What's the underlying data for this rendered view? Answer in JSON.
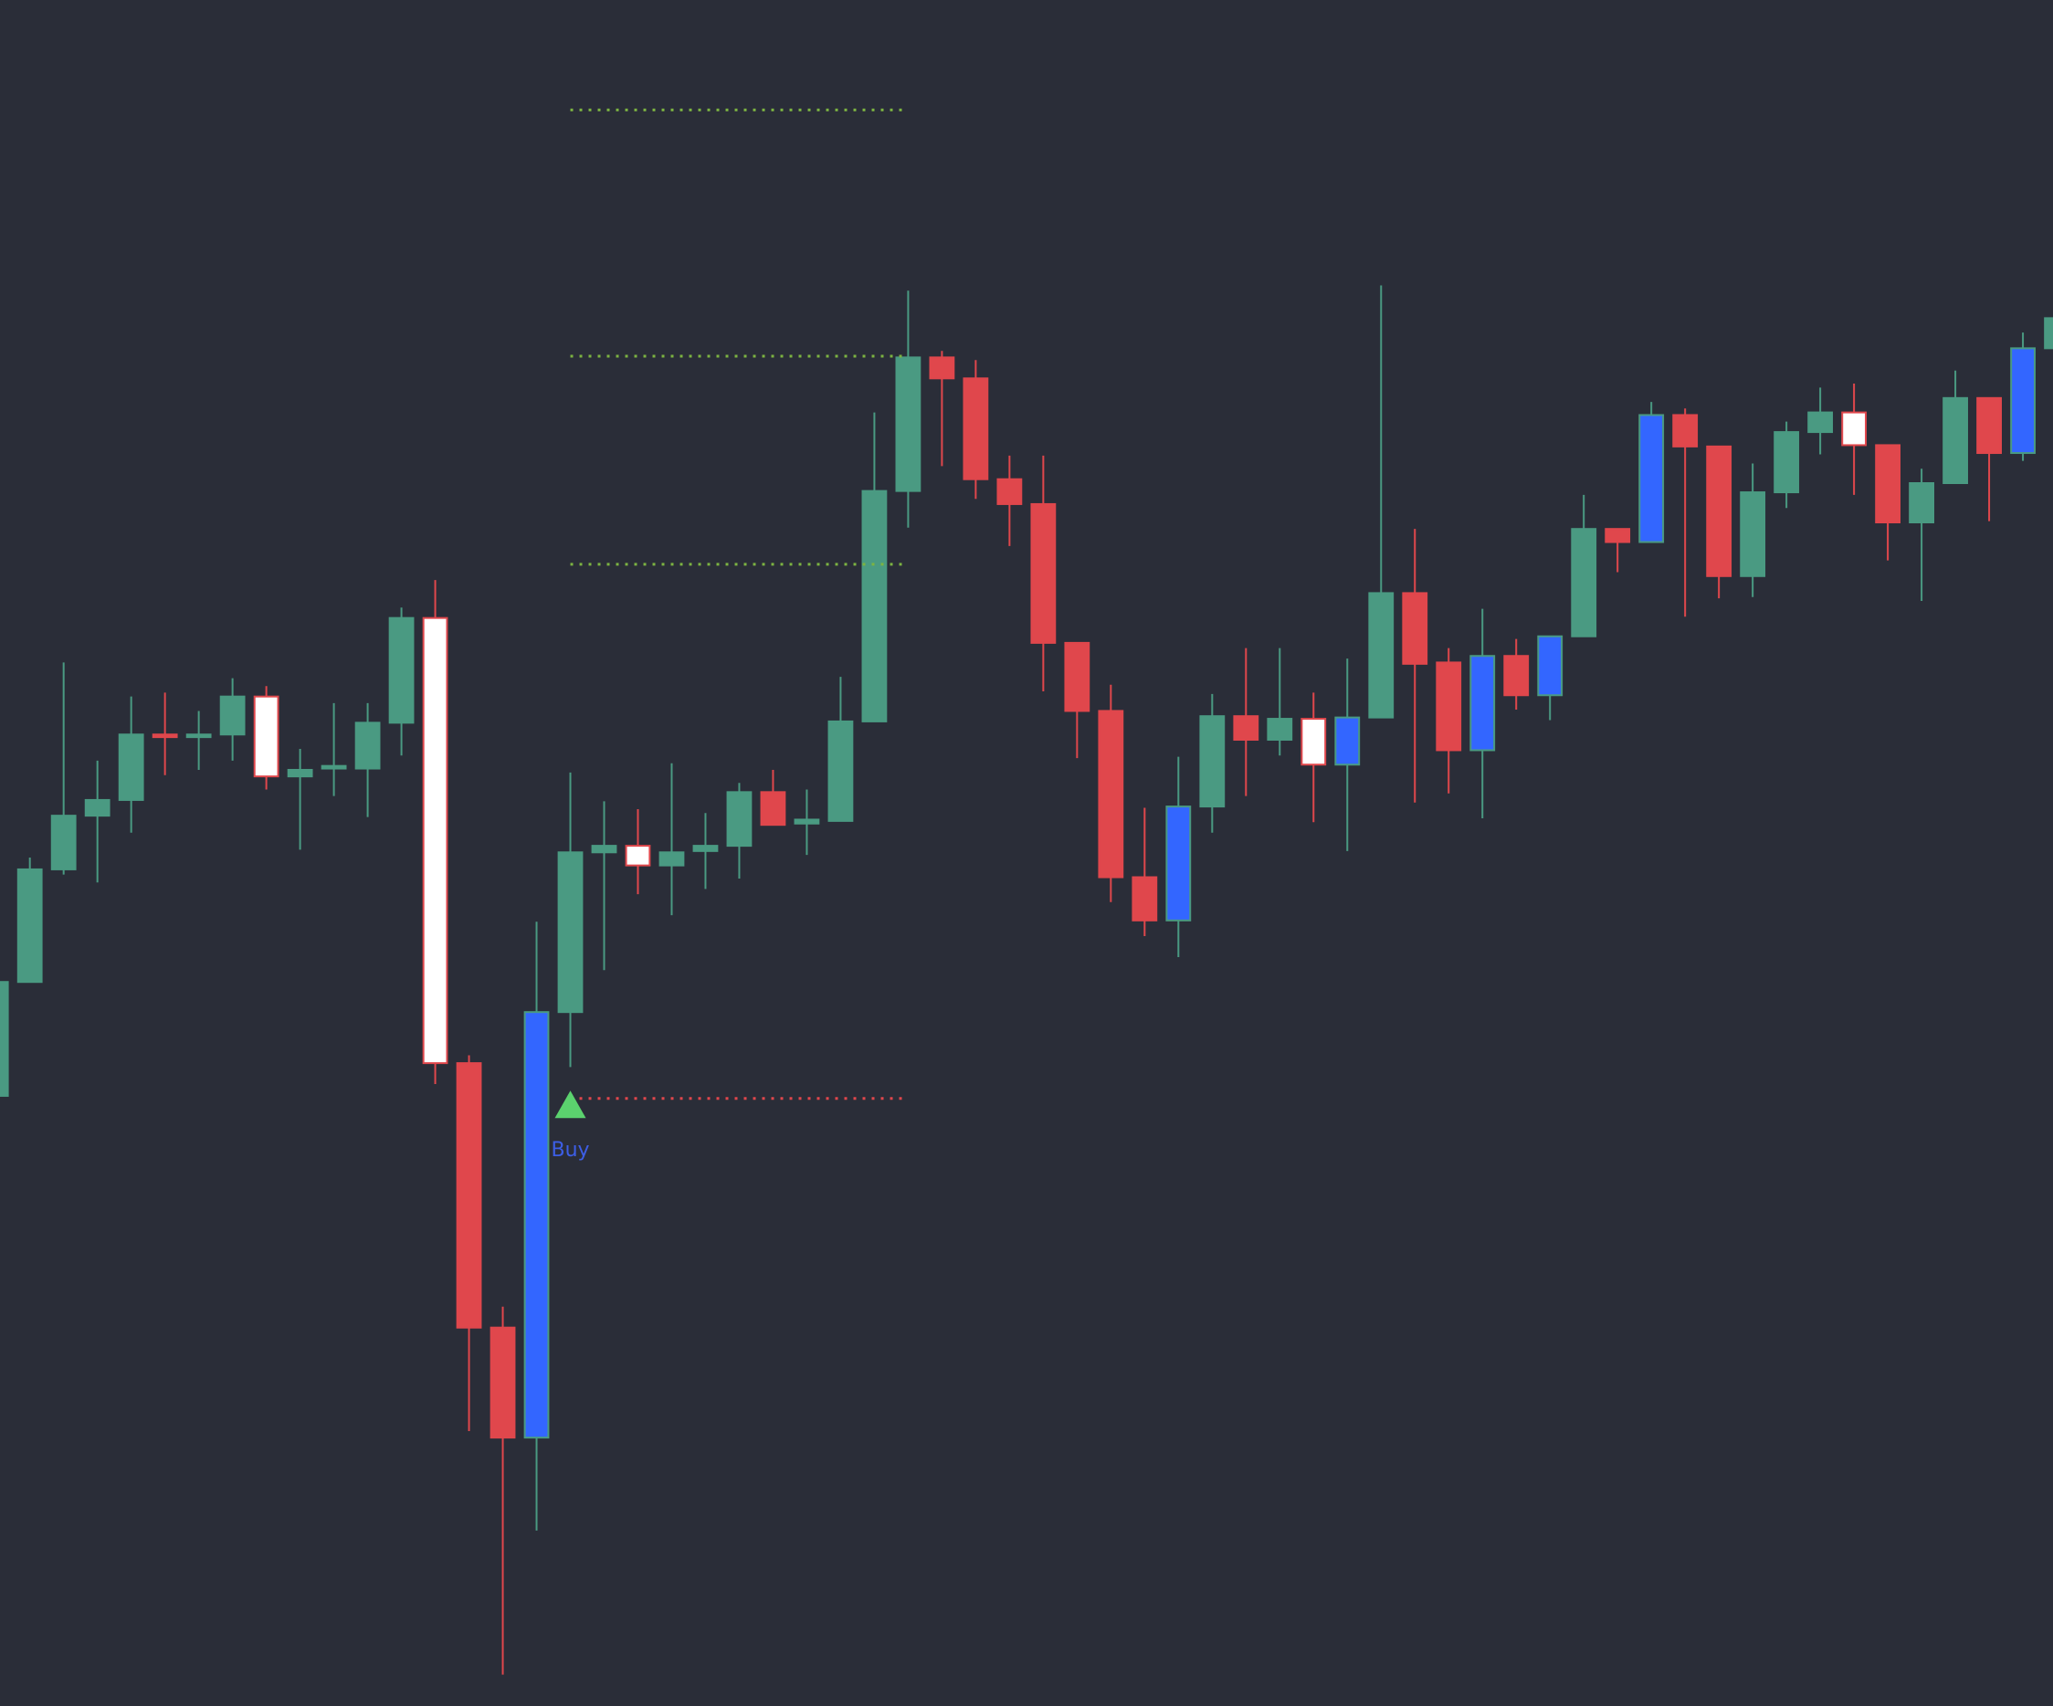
{
  "chart_data": {
    "type": "candlestick",
    "open": [
      466,
      553,
      639,
      680,
      692,
      742,
      740,
      742,
      771,
      710,
      716,
      716,
      751,
      831,
      491,
      289,
      205,
      530,
      652,
      657,
      642,
      653,
      657,
      698,
      674,
      676,
      752,
      928,
      1030,
      1014,
      937,
      918,
      812,
      760,
      633,
      600,
      687,
      756,
      738,
      754,
      719,
      755,
      850,
      797,
      730,
      802,
      772,
      817,
      899,
      889,
      986,
      962,
      863,
      927,
      973,
      988,
      963,
      904,
      934,
      999,
      957,
      1037
    ],
    "high": [
      553,
      648,
      797,
      722,
      771,
      774,
      760,
      785,
      779,
      731,
      766,
      766,
      839,
      860,
      497,
      305,
      599,
      713,
      691,
      685,
      720,
      682,
      705,
      715,
      700,
      786,
      988,
      1081,
      1035,
      1028,
      955,
      955,
      812,
      780,
      686,
      725,
      773,
      808,
      808,
      774,
      800,
      1085,
      899,
      808,
      838,
      815,
      817,
      925,
      899,
      996,
      991,
      962,
      949,
      981,
      1007,
      1010,
      963,
      945,
      1020,
      999,
      1049,
      1060
    ],
    "low": [
      466,
      553,
      635,
      629,
      667,
      711,
      715,
      722,
      700,
      654,
      695,
      679,
      726,
      475,
      210,
      24,
      134,
      488,
      562,
      620,
      604,
      624,
      632,
      673,
      650,
      676,
      752,
      900,
      947,
      922,
      886,
      775,
      724,
      614,
      588,
      572,
      667,
      695,
      726,
      675,
      653,
      755,
      690,
      697,
      678,
      761,
      753,
      817,
      866,
      889,
      832,
      846,
      847,
      915,
      956,
      925,
      875,
      844,
      934,
      905,
      951,
      1037
    ],
    "close": [
      553,
      639,
      680,
      692,
      742,
      740,
      742,
      771,
      710,
      715,
      718,
      751,
      831,
      491,
      289,
      205,
      530,
      652,
      657,
      642,
      652,
      657,
      698,
      673,
      677,
      752,
      928,
      1030,
      1014,
      937,
      918,
      812,
      760,
      633,
      600,
      687,
      756,
      738,
      754,
      719,
      755,
      850,
      796,
      730,
      802,
      772,
      817,
      899,
      889,
      986,
      962,
      863,
      927,
      973,
      988,
      963,
      904,
      934,
      999,
      957,
      1037,
      1060
    ],
    "fill_colors": [
      "#4a9a82",
      "#4a9a82",
      "#4a9a82",
      "#4a9a82",
      "#4a9a82",
      "#e0474c",
      "#4a9a82",
      "#4a9a82",
      "#ffffff",
      "#4a9a82",
      "#4a9a82",
      "#4a9a82",
      "#4a9a82",
      "#ffffff",
      "#e0474c",
      "#e0474c",
      "#3366ff",
      "#4a9a82",
      "#4a9a82",
      "#ffffff",
      "#4a9a82",
      "#4a9a82",
      "#4a9a82",
      "#e0474c",
      "#4a9a82",
      "#4a9a82",
      "#4a9a82",
      "#4a9a82",
      "#e0474c",
      "#e0474c",
      "#e0474c",
      "#e0474c",
      "#e0474c",
      "#e0474c",
      "#e0474c",
      "#3366ff",
      "#4a9a82",
      "#e0474c",
      "#4a9a82",
      "#ffffff",
      "#3366ff",
      "#4a9a82",
      "#e0474c",
      "#e0474c",
      "#3366ff",
      "#e0474c",
      "#3366ff",
      "#4a9a82",
      "#e0474c",
      "#3366ff",
      "#e0474c",
      "#e0474c",
      "#4a9a82",
      "#4a9a82",
      "#4a9a82",
      "#ffffff",
      "#e0474c",
      "#4a9a82",
      "#4a9a82",
      "#e0474c",
      "#3366ff",
      "#4a9a82"
    ],
    "border_colors": [
      "#4a9a82",
      "#4a9a82",
      "#4a9a82",
      "#4a9a82",
      "#4a9a82",
      "#e0474c",
      "#4a9a82",
      "#4a9a82",
      "#e0474c",
      "#4a9a82",
      "#4a9a82",
      "#4a9a82",
      "#4a9a82",
      "#e0474c",
      "#e0474c",
      "#e0474c",
      "#4a9a82",
      "#4a9a82",
      "#4a9a82",
      "#e0474c",
      "#4a9a82",
      "#4a9a82",
      "#4a9a82",
      "#e0474c",
      "#4a9a82",
      "#4a9a82",
      "#4a9a82",
      "#4a9a82",
      "#e0474c",
      "#e0474c",
      "#e0474c",
      "#e0474c",
      "#e0474c",
      "#e0474c",
      "#e0474c",
      "#4a9a82",
      "#4a9a82",
      "#e0474c",
      "#4a9a82",
      "#e0474c",
      "#4a9a82",
      "#4a9a82",
      "#e0474c",
      "#e0474c",
      "#4a9a82",
      "#e0474c",
      "#4a9a82",
      "#4a9a82",
      "#e0474c",
      "#4a9a82",
      "#e0474c",
      "#e0474c",
      "#4a9a82",
      "#4a9a82",
      "#4a9a82",
      "#e0474c",
      "#e0474c",
      "#4a9a82",
      "#4a9a82",
      "#e0474c",
      "#4a9a82",
      "#4a9a82"
    ],
    "ylim": [
      0,
      1303
    ],
    "levels": [
      {
        "value": 1219,
        "color": "#7cb342",
        "start": 17,
        "end": 27
      },
      {
        "value": 1031,
        "color": "#7cb342",
        "start": 17,
        "end": 27
      },
      {
        "value": 872,
        "color": "#7cb342",
        "start": 17,
        "end": 27
      },
      {
        "value": 464,
        "color": "#e0474c",
        "start": 17,
        "end": 27
      }
    ],
    "signals": [
      {
        "index": 17,
        "value": 470,
        "label": "Buy",
        "color": "#5bd26e",
        "label_color": "#3d5ee6"
      }
    ]
  }
}
